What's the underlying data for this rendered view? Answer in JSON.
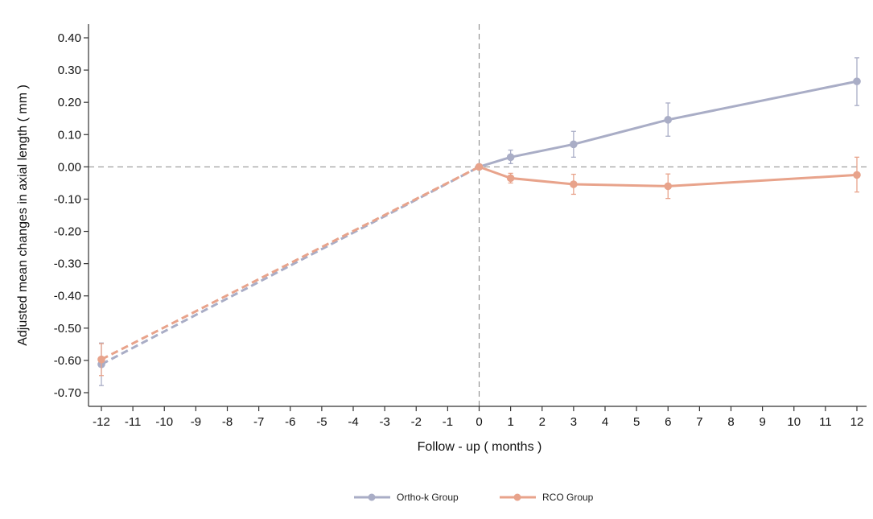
{
  "chart_data": {
    "type": "line",
    "title": "",
    "xlabel": "Follow - up ( months )",
    "ylabel": "Adjusted mean changes in axial length ( mm )",
    "ylim": [
      -0.7,
      0.4
    ],
    "x_ticks": [
      "-12",
      "-11",
      "-10",
      "-9",
      "-8",
      "-7",
      "-6",
      "-5",
      "-4",
      "-3",
      "-2",
      "-1",
      "0",
      "1",
      "2",
      "3",
      "4",
      "5",
      "6",
      "7",
      "8",
      "9",
      "10",
      "11",
      "12"
    ],
    "y_ticks": [
      "0.40",
      "0.30",
      "0.20",
      "0.10",
      "0.00",
      "-0.10",
      "-0.20",
      "-0.30",
      "-0.40",
      "-0.50",
      "-0.60",
      "-0.70"
    ],
    "y_tick_values": [
      0.4,
      0.3,
      0.2,
      0.1,
      0.0,
      -0.1,
      -0.2,
      -0.3,
      -0.4,
      -0.5,
      -0.6,
      -0.7
    ],
    "reference_lines": {
      "horizontal_at_y": 0.0,
      "vertical_at_x": "0"
    },
    "legend_position": "bottom-center",
    "grid": false,
    "series": [
      {
        "name": "Ortho-k Group",
        "color": "#a9adc6",
        "points": [
          {
            "x": "-12",
            "y": -0.612,
            "err_low": -0.678,
            "err_high": -0.546,
            "segment": "dashed"
          },
          {
            "x": "0",
            "y": 0.0,
            "segment": "solid"
          },
          {
            "x": "1",
            "y": 0.03,
            "err_low": 0.01,
            "err_high": 0.052,
            "segment": "solid"
          },
          {
            "x": "3",
            "y": 0.07,
            "err_low": 0.03,
            "err_high": 0.11,
            "segment": "solid"
          },
          {
            "x": "6",
            "y": 0.146,
            "err_low": 0.095,
            "err_high": 0.198,
            "segment": "solid"
          },
          {
            "x": "12",
            "y": 0.265,
            "err_low": 0.19,
            "err_high": 0.338,
            "segment": "solid"
          }
        ]
      },
      {
        "name": "RCO Group",
        "color": "#e8a38b",
        "points": [
          {
            "x": "-12",
            "y": -0.597,
            "err_low": -0.647,
            "err_high": -0.548,
            "segment": "dashed"
          },
          {
            "x": "0",
            "y": 0.0,
            "segment": "solid"
          },
          {
            "x": "1",
            "y": -0.035,
            "err_low": -0.05,
            "err_high": -0.02,
            "segment": "solid"
          },
          {
            "x": "3",
            "y": -0.054,
            "err_low": -0.085,
            "err_high": -0.023,
            "segment": "solid"
          },
          {
            "x": "6",
            "y": -0.06,
            "err_low": -0.098,
            "err_high": -0.022,
            "segment": "solid"
          },
          {
            "x": "12",
            "y": -0.025,
            "err_low": -0.078,
            "err_high": 0.03,
            "segment": "solid"
          }
        ]
      }
    ]
  }
}
